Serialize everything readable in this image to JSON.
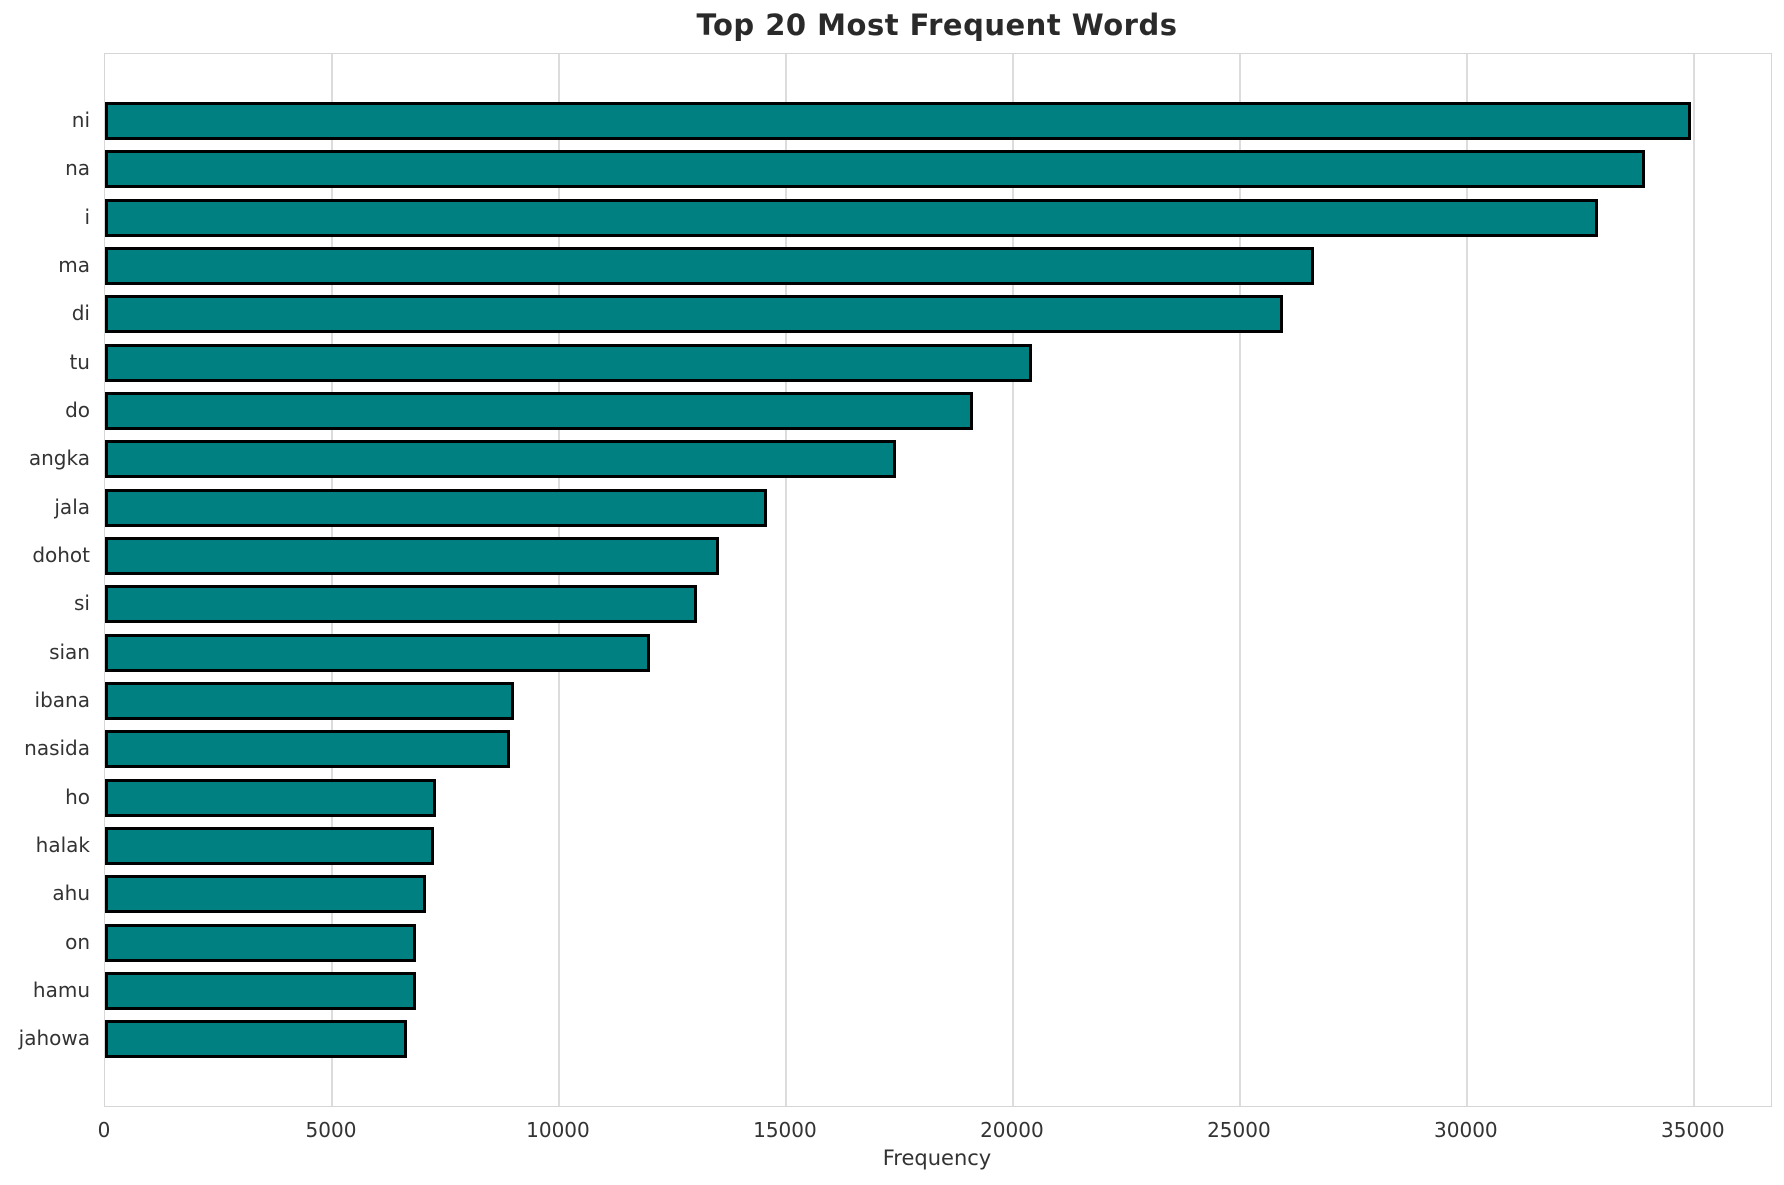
{
  "figure": {
    "title": "Top 20 Most Frequent Words"
  },
  "chart_data": {
    "type": "bar",
    "orientation": "horizontal",
    "title": "Top 20 Most Frequent Words",
    "xlabel": "Frequency",
    "ylabel": "",
    "categories": [
      "ni",
      "na",
      "i",
      "ma",
      "di",
      "tu",
      "do",
      "angka",
      "jala",
      "dohot",
      "si",
      "sian",
      "ibana",
      "nasida",
      "ho",
      "halak",
      "ahu",
      "on",
      "hamu",
      "jahowa"
    ],
    "values": [
      34930,
      33930,
      32880,
      26640,
      25940,
      20430,
      19130,
      17430,
      14580,
      13520,
      13050,
      12000,
      9000,
      8920,
      7290,
      7240,
      7070,
      6850,
      6850,
      6660
    ],
    "xlim": [
      0,
      36700
    ],
    "x_ticks": [
      0,
      5000,
      10000,
      15000,
      20000,
      25000,
      30000,
      35000
    ],
    "grid": "vertical-only",
    "legend": "none",
    "bar_color": "#008080",
    "bar_edge_color": "#000000",
    "grid_color": "#dcdcdc",
    "text_color": "#333333",
    "background_color": "#ffffff"
  }
}
